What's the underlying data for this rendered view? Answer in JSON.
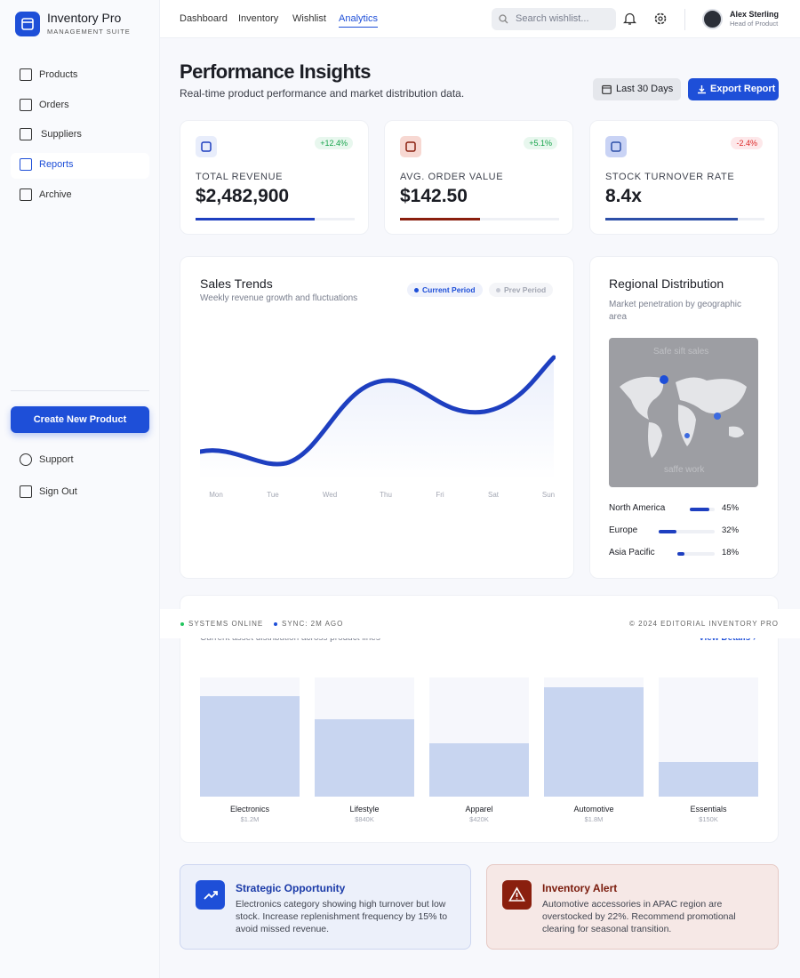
{
  "sidebar": {
    "brand": {
      "title": "Inventory Pro",
      "subtitle": "MANAGEMENT SUITE"
    },
    "nav": [
      "Products",
      "Orders",
      "Suppliers",
      "Reports",
      "Archive"
    ],
    "cta": "Create New Product",
    "footer_links": [
      "Support",
      "Sign Out"
    ]
  },
  "topbar": {
    "tabs": [
      "Dashboard",
      "Inventory",
      "Wishlist",
      "Analytics"
    ],
    "search_placeholder": "Search wishlist...",
    "user": {
      "name": "Alex Sterling",
      "role": "Head of Product"
    }
  },
  "header": {
    "title": "Performance Insights",
    "subtitle": "Real-time product performance and market distribution data.",
    "buttons": [
      "Last 30 Days",
      "Export Report"
    ]
  },
  "kpis": [
    {
      "label": "TOTAL REVENUE",
      "value": "$2,482,900",
      "change": "+12.4%"
    },
    {
      "label": "AVG. ORDER VALUE",
      "value": "$142.50",
      "change": "+5.1%"
    },
    {
      "label": "STOCK TURNOVER RATE",
      "value": "8.4x",
      "change": "-2.4%"
    }
  ],
  "sales_trends": {
    "title": "Sales Trends",
    "subtitle": "Weekly revenue growth and fluctuations",
    "legend": [
      "Current Period",
      "Prev Period"
    ],
    "days": [
      "Mon",
      "Tue",
      "Wed",
      "Thu",
      "Fri",
      "Sat",
      "Sun"
    ]
  },
  "regional": {
    "title": "Regional Distribution",
    "subtitle": "Market penetration by geographic area",
    "map_text": [
      "Safe sift sales",
      "saffe work"
    ],
    "regions": [
      {
        "name": "North America",
        "share": "45%"
      },
      {
        "name": "Europe",
        "share": "32%"
      },
      {
        "name": "Asia Pacific",
        "share": "18%"
      }
    ]
  },
  "asset": {
    "subtitle": "Current asset distribution across product lines",
    "link": "View Details ›",
    "categories": [
      {
        "name": "Electronics",
        "value": "$1.2M"
      },
      {
        "name": "Lifestyle",
        "value": "$840K"
      },
      {
        "name": "Apparel",
        "value": "$420K"
      },
      {
        "name": "Automotive",
        "value": "$1.8M"
      },
      {
        "name": "Essentials",
        "value": "$150K"
      }
    ]
  },
  "status_bar": {
    "items": [
      "SYSTEMS ONLINE",
      "SYNC: 2M AGO"
    ],
    "copyright": "© 2024 EDITORIAL INVENTORY PRO"
  },
  "alerts": [
    {
      "title": "Strategic Opportunity",
      "text": "Electronics category showing high turnover but low stock. Increase replenishment frequency by 15% to avoid missed revenue."
    },
    {
      "title": "Inventory Alert",
      "text": "Automotive accessories in APAC region are overstocked by 22%. Recommend promotional clearing for seasonal transition."
    }
  ]
}
